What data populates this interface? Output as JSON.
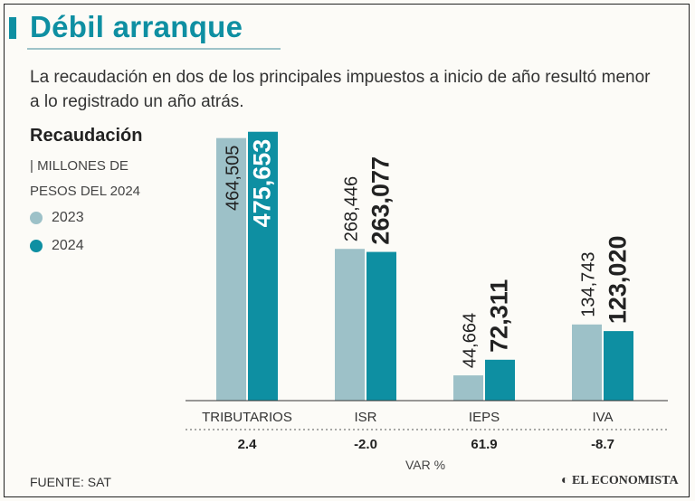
{
  "header": {
    "title": "Débil arranque",
    "subtitle": "La recaudación en dos de los principales impuestos a inicio de año resultó menor a lo registrado un año atrás."
  },
  "legend": {
    "title": "Recaudación",
    "units_line1": "| MILLONES DE",
    "units_line2": "PESOS DEL 2024",
    "items": [
      {
        "label": "2023",
        "color": "#9dc1c8"
      },
      {
        "label": "2024",
        "color": "#0e8fa2"
      }
    ]
  },
  "chart_data": {
    "type": "bar",
    "title": "Recaudación",
    "ylabel": "Millones de pesos del 2024",
    "categories": [
      "TRIBUTARIOS",
      "ISR",
      "IEPS",
      "IVA"
    ],
    "series": [
      {
        "name": "2023",
        "values": [
          464505,
          268446,
          44664,
          134743
        ],
        "labels": [
          "464,505",
          "268,446",
          "44,664",
          "134,743"
        ]
      },
      {
        "name": "2024",
        "values": [
          475653,
          263077,
          72311,
          123020
        ],
        "labels": [
          "475,653",
          "263,077",
          "72,311",
          "123,020"
        ]
      }
    ],
    "var_pct": [
      "2.4",
      "-2.0",
      "61.9",
      "-8.7"
    ],
    "var_label": "VAR %",
    "ylim": [
      0,
      480000
    ]
  },
  "footer": {
    "source": "FUENTE: SAT",
    "brand": "EL ECONOMISTA"
  }
}
